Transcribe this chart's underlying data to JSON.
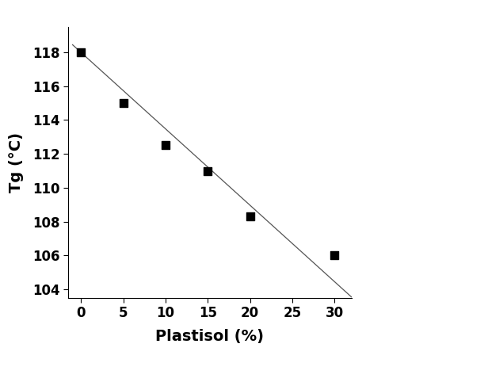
{
  "x_data": [
    0,
    5,
    10,
    15,
    20,
    30
  ],
  "y_data": [
    118.0,
    115.0,
    112.5,
    111.0,
    108.3,
    106.0
  ],
  "line_x": [
    -1,
    32
  ],
  "line_y": [
    118.4375,
    103.5625
  ],
  "xlabel": "Plastisol (%)",
  "ylabel": "Tg (°C)",
  "xlim": [
    -1.5,
    32
  ],
  "ylim": [
    103.5,
    119.5
  ],
  "xticks": [
    0,
    5,
    10,
    15,
    20,
    25,
    30
  ],
  "yticks": [
    104,
    106,
    108,
    110,
    112,
    114,
    116,
    118
  ],
  "marker_color": "#000000",
  "line_color": "#555555",
  "marker_size": 55,
  "xlabel_fontsize": 14,
  "ylabel_fontsize": 14,
  "tick_fontsize": 12,
  "background_color": "#ffffff",
  "font_family": "Arial"
}
